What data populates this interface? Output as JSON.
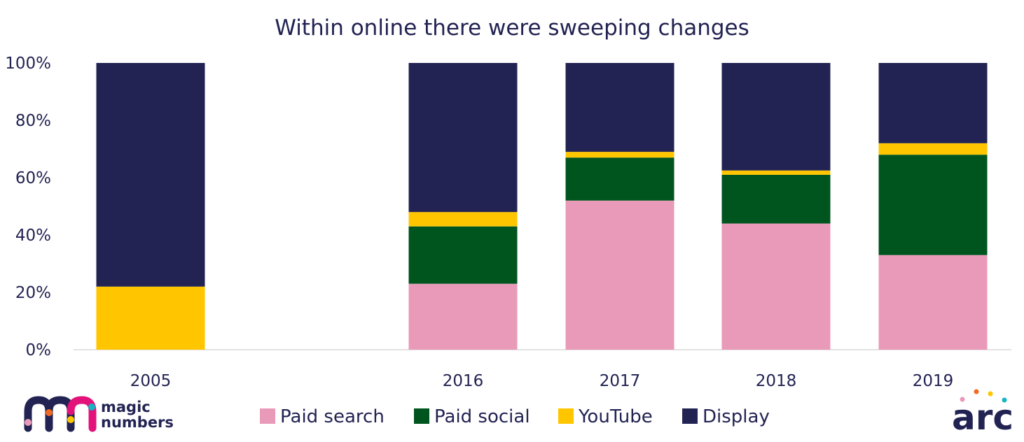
{
  "chart_data": {
    "type": "bar",
    "stacked": true,
    "title": "Within online there were sweeping changes",
    "xlabel": "",
    "ylabel": "",
    "ylim": [
      0,
      100
    ],
    "yticks": [
      "0%",
      "20%",
      "40%",
      "60%",
      "80%",
      "100%"
    ],
    "categories": [
      "2005",
      "2016",
      "2017",
      "2018",
      "2019"
    ],
    "series": [
      {
        "name": "Paid search",
        "color": "#E99AB9",
        "values": [
          0,
          23,
          52,
          44,
          33
        ]
      },
      {
        "name": "Paid social",
        "color": "#00541D",
        "values": [
          0,
          20,
          15,
          17,
          35
        ]
      },
      {
        "name": "YouTube",
        "color": "#FFC600",
        "values": [
          22,
          5,
          2,
          1.5,
          4
        ]
      },
      {
        "name": "Display",
        "color": "#222352",
        "values": [
          78,
          52,
          31,
          37.5,
          28
        ]
      }
    ],
    "grid": false,
    "legend_position": "bottom"
  },
  "logos": {
    "left_line1": "magic",
    "left_line2": "numbers",
    "right": "arc"
  }
}
